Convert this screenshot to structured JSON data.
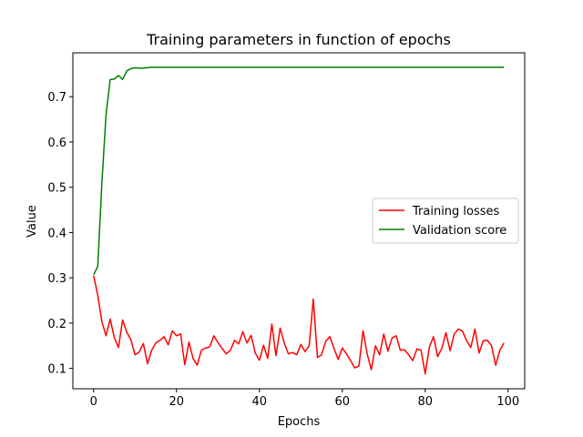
{
  "chart_data": {
    "type": "line",
    "title": "Training parameters in function of epochs",
    "xlabel": "Epochs",
    "ylabel": "Value",
    "xlim": [
      -5,
      104
    ],
    "ylim": [
      0.055,
      0.797
    ],
    "xticks": [
      0,
      20,
      40,
      60,
      80,
      100
    ],
    "yticks": [
      0.1,
      0.2,
      0.3,
      0.4,
      0.5,
      0.6,
      0.7
    ],
    "ytick_labels": [
      "0.1",
      "0.2",
      "0.3",
      "0.4",
      "0.5",
      "0.6",
      "0.7"
    ],
    "grid": false,
    "legend_position": "center-right",
    "x": [
      0,
      1,
      2,
      3,
      4,
      5,
      6,
      7,
      8,
      9,
      10,
      11,
      12,
      13,
      14,
      15,
      16,
      17,
      18,
      19,
      20,
      21,
      22,
      23,
      24,
      25,
      26,
      27,
      28,
      29,
      30,
      31,
      32,
      33,
      34,
      35,
      36,
      37,
      38,
      39,
      40,
      41,
      42,
      43,
      44,
      45,
      46,
      47,
      48,
      49,
      50,
      51,
      52,
      53,
      54,
      55,
      56,
      57,
      58,
      59,
      60,
      61,
      62,
      63,
      64,
      65,
      66,
      67,
      68,
      69,
      70,
      71,
      72,
      73,
      74,
      75,
      76,
      77,
      78,
      79,
      80,
      81,
      82,
      83,
      84,
      85,
      86,
      87,
      88,
      89,
      90,
      91,
      92,
      93,
      94,
      95,
      96,
      97,
      98,
      99
    ],
    "series": [
      {
        "name": "Training losses",
        "color": "#ff0000",
        "values": [
          0.305,
          0.262,
          0.203,
          0.172,
          0.209,
          0.168,
          0.146,
          0.207,
          0.18,
          0.163,
          0.13,
          0.136,
          0.155,
          0.11,
          0.14,
          0.156,
          0.162,
          0.17,
          0.152,
          0.183,
          0.172,
          0.176,
          0.108,
          0.158,
          0.122,
          0.107,
          0.14,
          0.145,
          0.147,
          0.172,
          0.157,
          0.144,
          0.132,
          0.14,
          0.162,
          0.154,
          0.181,
          0.156,
          0.173,
          0.134,
          0.118,
          0.151,
          0.122,
          0.198,
          0.128,
          0.189,
          0.156,
          0.132,
          0.135,
          0.13,
          0.153,
          0.137,
          0.15,
          0.253,
          0.124,
          0.13,
          0.16,
          0.17,
          0.144,
          0.12,
          0.145,
          0.132,
          0.117,
          0.101,
          0.105,
          0.183,
          0.132,
          0.097,
          0.15,
          0.13,
          0.176,
          0.138,
          0.167,
          0.172,
          0.14,
          0.141,
          0.13,
          0.117,
          0.143,
          0.14,
          0.088,
          0.147,
          0.17,
          0.126,
          0.144,
          0.179,
          0.139,
          0.176,
          0.187,
          0.182,
          0.161,
          0.146,
          0.187,
          0.134,
          0.161,
          0.162,
          0.15,
          0.107,
          0.14,
          0.156
        ]
      },
      {
        "name": "Validation score",
        "color": "#008000",
        "values": [
          0.307,
          0.325,
          0.51,
          0.66,
          0.738,
          0.739,
          0.747,
          0.738,
          0.757,
          0.762,
          0.764,
          0.763,
          0.763,
          0.764,
          0.765,
          0.765,
          0.765,
          0.765,
          0.765,
          0.765,
          0.765,
          0.765,
          0.765,
          0.765,
          0.765,
          0.765,
          0.765,
          0.765,
          0.765,
          0.765,
          0.765,
          0.765,
          0.765,
          0.765,
          0.765,
          0.765,
          0.765,
          0.765,
          0.765,
          0.765,
          0.765,
          0.765,
          0.765,
          0.765,
          0.765,
          0.765,
          0.765,
          0.765,
          0.765,
          0.765,
          0.765,
          0.765,
          0.765,
          0.765,
          0.765,
          0.765,
          0.765,
          0.765,
          0.765,
          0.765,
          0.765,
          0.765,
          0.765,
          0.765,
          0.765,
          0.765,
          0.765,
          0.765,
          0.765,
          0.765,
          0.765,
          0.765,
          0.765,
          0.765,
          0.765,
          0.765,
          0.765,
          0.765,
          0.765,
          0.765,
          0.765,
          0.765,
          0.765,
          0.765,
          0.765,
          0.765,
          0.765,
          0.765,
          0.765,
          0.765,
          0.765,
          0.765,
          0.765,
          0.765,
          0.765,
          0.765,
          0.765,
          0.765,
          0.765,
          0.765
        ]
      }
    ]
  }
}
